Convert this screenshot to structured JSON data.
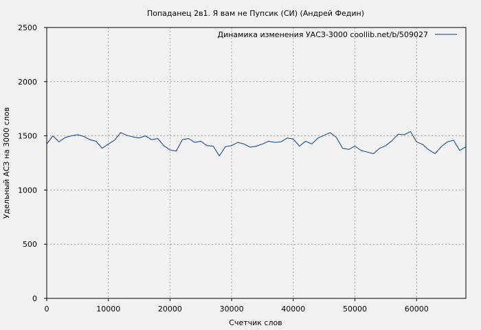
{
  "chart_data": {
    "type": "line",
    "title": "Попаданец 2в1. Я вам не Пупсик (СИ) (Андрей Федин)",
    "xlabel": "Счетчик слов",
    "ylabel": "Удельный АСЗ на 3000 слов",
    "xlim": [
      0,
      68000
    ],
    "ylim": [
      0,
      2500
    ],
    "x_ticks": [
      0,
      10000,
      20000,
      30000,
      40000,
      50000,
      60000
    ],
    "y_ticks": [
      0,
      500,
      1000,
      1500,
      2000,
      2500
    ],
    "grid": true,
    "legend_position": "top-right",
    "colors": {
      "line": "#0a3d91",
      "background": "#f2f2f2",
      "grid": "#a0a0a0"
    },
    "series": [
      {
        "name": "Динамика изменения УАСЗ-3000  coollib.net/b/509027",
        "x": [
          0,
          1000,
          2000,
          3000,
          4000,
          5000,
          6000,
          7000,
          8000,
          9000,
          10000,
          11000,
          12000,
          13000,
          14000,
          15000,
          16000,
          17000,
          18000,
          19000,
          20000,
          21000,
          22000,
          23000,
          24000,
          25000,
          26000,
          27000,
          28000,
          29000,
          30000,
          31000,
          32000,
          33000,
          34000,
          35000,
          36000,
          37000,
          38000,
          39000,
          40000,
          41000,
          42000,
          43000,
          44000,
          45000,
          46000,
          47000,
          48000,
          49000,
          50000,
          51000,
          52000,
          53000,
          54000,
          55000,
          56000,
          57000,
          58000,
          59000,
          60000,
          61000,
          62000,
          63000,
          64000,
          65000,
          66000,
          67000,
          68000
        ],
        "y": [
          1425,
          1500,
          1445,
          1485,
          1500,
          1510,
          1495,
          1465,
          1450,
          1385,
          1425,
          1460,
          1530,
          1505,
          1490,
          1480,
          1500,
          1465,
          1475,
          1410,
          1370,
          1360,
          1465,
          1475,
          1440,
          1450,
          1410,
          1405,
          1315,
          1400,
          1410,
          1440,
          1425,
          1395,
          1405,
          1425,
          1450,
          1440,
          1445,
          1480,
          1470,
          1405,
          1450,
          1425,
          1480,
          1505,
          1530,
          1485,
          1385,
          1375,
          1405,
          1365,
          1350,
          1335,
          1385,
          1410,
          1455,
          1515,
          1510,
          1540,
          1445,
          1420,
          1370,
          1335,
          1400,
          1445,
          1460,
          1365,
          1400
        ]
      }
    ]
  }
}
